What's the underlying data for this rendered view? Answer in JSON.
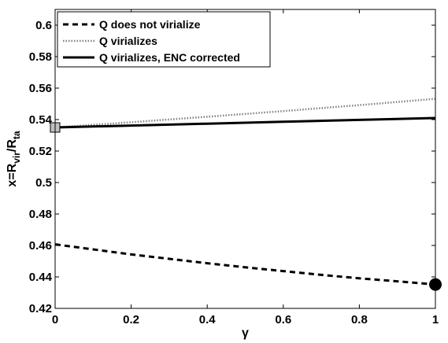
{
  "chart_data": {
    "type": "line",
    "xlabel": "γ",
    "ylabel": {
      "main": "x=R",
      "sub1": "vir",
      "sep": "/R",
      "sub2": "ta"
    },
    "xlim": [
      0,
      1
    ],
    "ylim": [
      0.42,
      0.61
    ],
    "x_ticks": [
      "0",
      "0.2",
      "0.4",
      "0.6",
      "0.8",
      "1"
    ],
    "x_tick_values": [
      0,
      0.2,
      0.4,
      0.6,
      0.8,
      1
    ],
    "y_ticks": [
      "0.42",
      "0.44",
      "0.46",
      "0.48",
      "0.5",
      "0.52",
      "0.54",
      "0.56",
      "0.58",
      "0.6"
    ],
    "y_tick_values": [
      0.42,
      0.44,
      0.46,
      0.48,
      0.5,
      0.52,
      0.54,
      0.56,
      0.58,
      0.6
    ],
    "grid": false,
    "legend_position": "top-left",
    "series": [
      {
        "name": "Q does not virialize",
        "style": "dashed",
        "color": "#000000",
        "x": [
          0,
          0.1,
          0.2,
          0.3,
          0.4,
          0.5,
          0.6,
          0.7,
          0.8,
          0.9,
          1.0
        ],
        "y": [
          0.4607,
          0.4575,
          0.4543,
          0.4515,
          0.4487,
          0.4461,
          0.4437,
          0.4413,
          0.4391,
          0.4372,
          0.4352
        ]
      },
      {
        "name": "Q virializes",
        "style": "dotted",
        "color": "#808080",
        "x": [
          0,
          0.2,
          0.4,
          0.6,
          0.8,
          1.0
        ],
        "y": [
          0.535,
          0.5383,
          0.5418,
          0.5454,
          0.5492,
          0.5532
        ]
      },
      {
        "name": "Q virializes, ENC corrected",
        "style": "solid",
        "color": "#000000",
        "x": [
          0,
          0.2,
          0.4,
          0.6,
          0.8,
          1.0
        ],
        "y": [
          0.535,
          0.5362,
          0.5374,
          0.5386,
          0.5398,
          0.541
        ]
      }
    ],
    "markers": [
      {
        "x": 0,
        "y": 0.535,
        "shape": "square",
        "color": "#c0c0c0"
      },
      {
        "x": 1,
        "y": 0.4352,
        "shape": "circle",
        "color": "#000000"
      }
    ]
  }
}
